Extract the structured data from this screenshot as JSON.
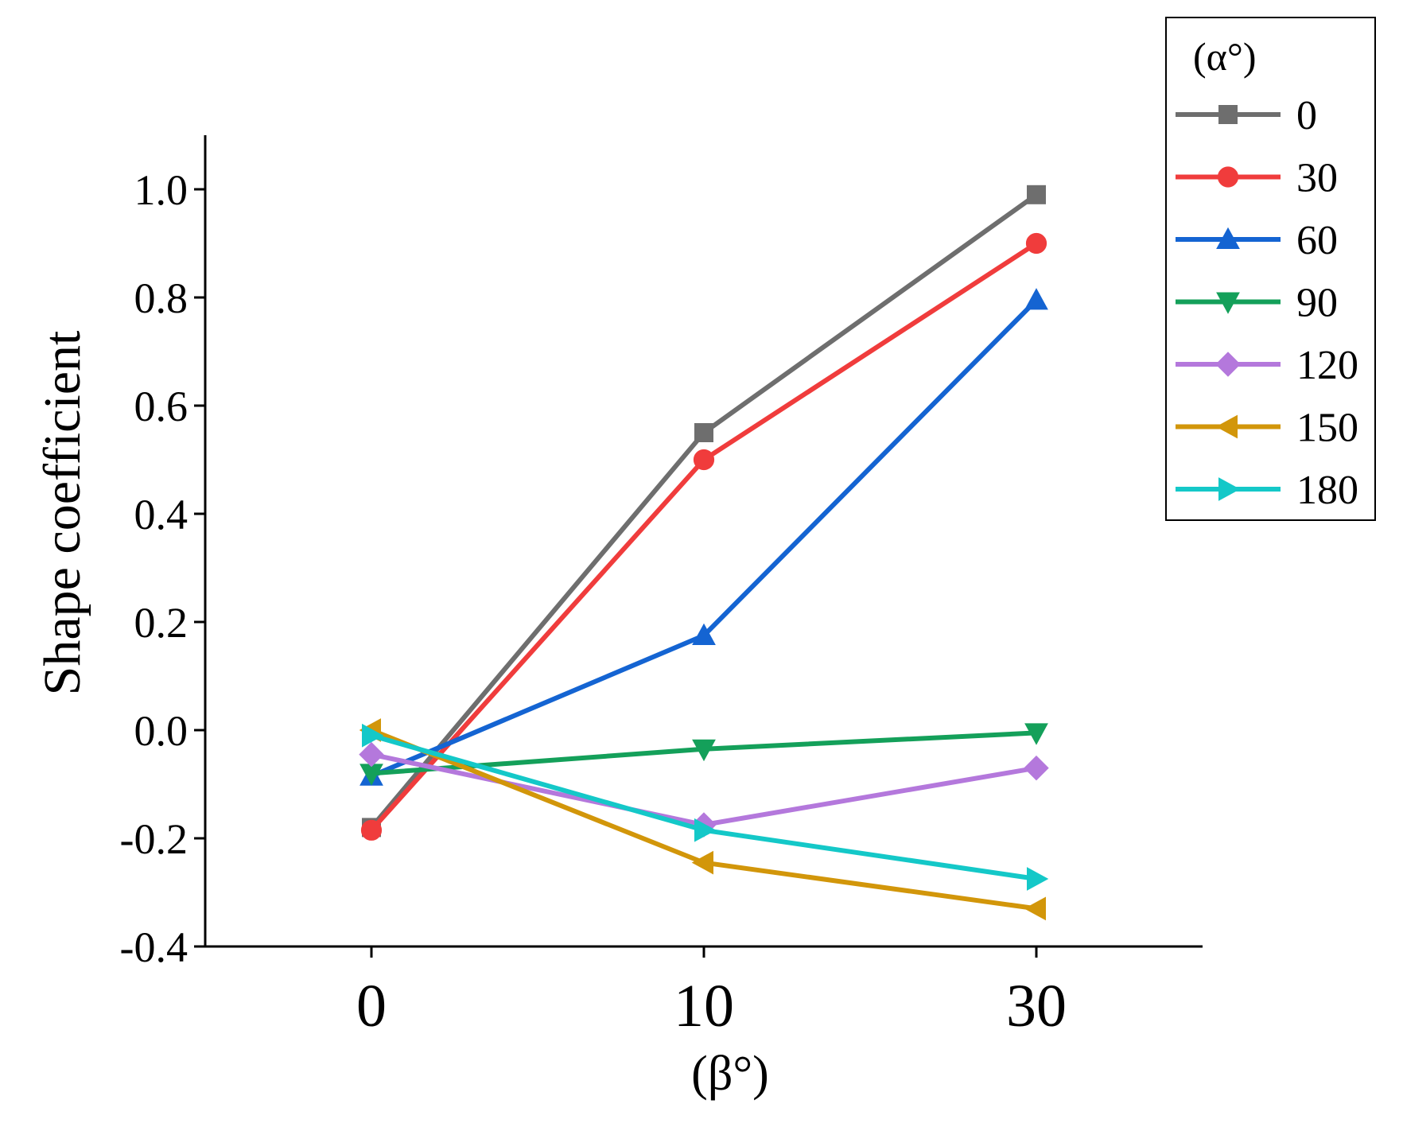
{
  "chart_data": {
    "type": "line",
    "title": "",
    "xlabel": "(β°)",
    "ylabel": "Shape coefficient",
    "categories": [
      "0",
      "10",
      "30"
    ],
    "ylim": [
      -0.4,
      1.1
    ],
    "yticks": [
      "-0.4",
      "-0.2",
      "0.0",
      "0.2",
      "0.4",
      "0.6",
      "0.8",
      "1.0"
    ],
    "grid": false,
    "legend": {
      "title": "(α°)",
      "position": "top-right outside"
    },
    "series": [
      {
        "name": "0",
        "marker": "square",
        "color": "#6e6e6e",
        "values": [
          -0.18,
          0.55,
          0.99
        ]
      },
      {
        "name": "30",
        "marker": "circle",
        "color": "#f03c3c",
        "values": [
          -0.185,
          0.5,
          0.9
        ]
      },
      {
        "name": "60",
        "marker": "triangle-up",
        "color": "#1464d2",
        "values": [
          -0.085,
          0.175,
          0.795
        ]
      },
      {
        "name": "90",
        "marker": "triangle-down",
        "color": "#14a05a",
        "values": [
          -0.08,
          -0.035,
          -0.005
        ]
      },
      {
        "name": "120",
        "marker": "diamond",
        "color": "#b478dc",
        "values": [
          -0.045,
          -0.175,
          -0.07
        ]
      },
      {
        "name": "150",
        "marker": "triangle-left",
        "color": "#d2960a",
        "values": [
          0.0,
          -0.245,
          -0.33
        ]
      },
      {
        "name": "180",
        "marker": "triangle-right",
        "color": "#14c8c8",
        "values": [
          -0.01,
          -0.185,
          -0.275
        ]
      }
    ]
  }
}
